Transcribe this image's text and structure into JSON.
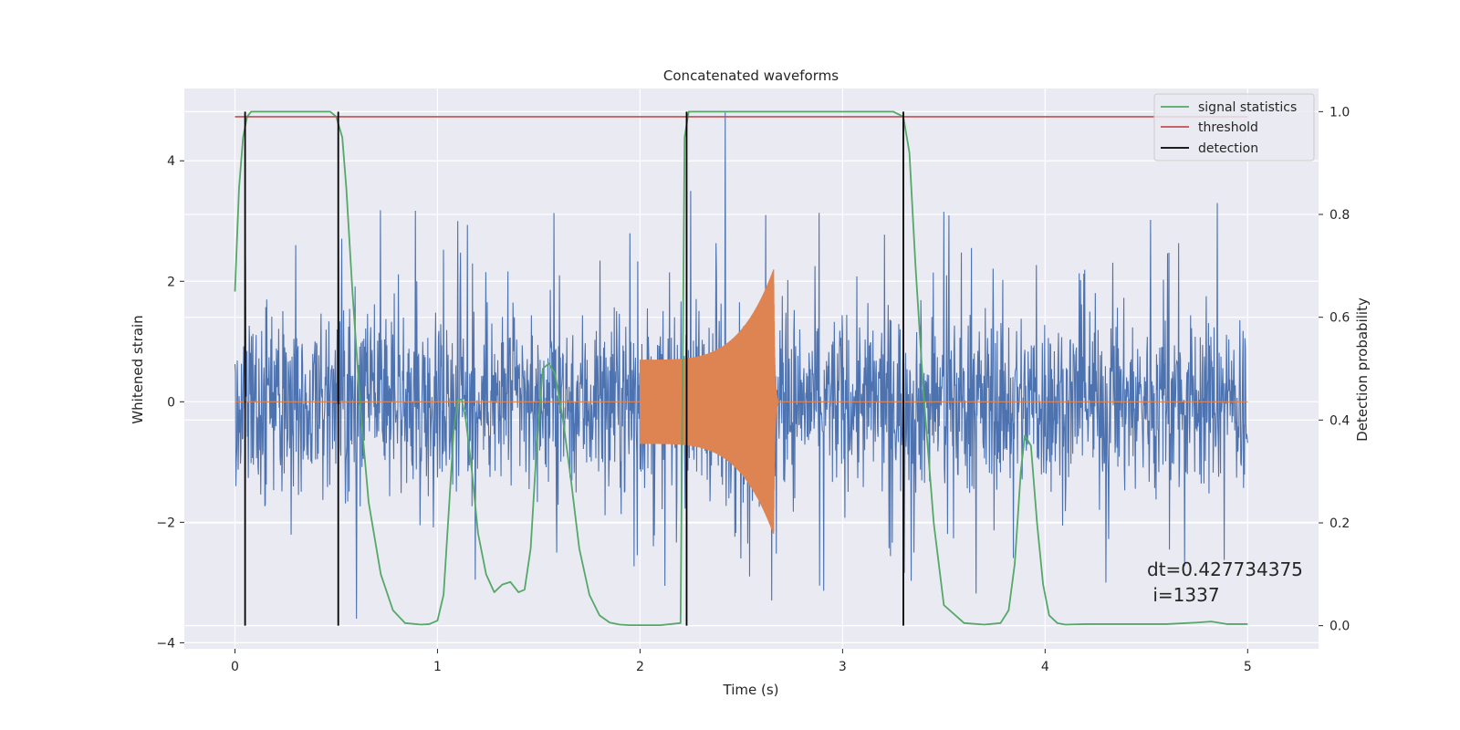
{
  "chart_data": {
    "type": "line",
    "title": "Concatenated waveforms",
    "xlabel": "Time (s)",
    "ylabel": "Whitened strain",
    "y2label": "Detection probability",
    "xlim": [
      -0.25,
      5.35
    ],
    "ylim": [
      -4.1,
      5.2
    ],
    "y2lim": [
      -0.045,
      1.045
    ],
    "xticks": [
      0,
      1,
      2,
      3,
      4,
      5
    ],
    "xtick_labels": [
      "0",
      "1",
      "2",
      "3",
      "4",
      "5"
    ],
    "yticks": [
      -4,
      -2,
      0,
      2,
      4
    ],
    "ytick_labels": [
      "−4",
      "−2",
      "0",
      "2",
      "4"
    ],
    "y2ticks": [
      0.0,
      0.2,
      0.4,
      0.6,
      0.8,
      1.0
    ],
    "y2tick_labels": [
      "0.0",
      "0.2",
      "0.4",
      "0.6",
      "0.8",
      "1.0"
    ],
    "grid": true,
    "legend_position": "top-right",
    "colors": {
      "background": "#eaeaf2",
      "grid": "#ffffff",
      "strain": "#4c72b0",
      "injection": "#dd8452",
      "signal_statistics": "#55a868",
      "threshold": "#c44e52",
      "detection": "#000000"
    },
    "strain": {
      "t_range": [
        0,
        5
      ],
      "typical_amplitude": 1.0,
      "spikes": [
        {
          "t": 0.05,
          "y": 3.0
        },
        {
          "t": 0.3,
          "y": 2.6
        },
        {
          "t": 0.6,
          "y": -3.6
        },
        {
          "t": 1.1,
          "y": 3.0
        },
        {
          "t": 2.25,
          "y": 3.5
        },
        {
          "t": 2.42,
          "y": 4.8
        },
        {
          "t": 2.62,
          "y": 3.1
        },
        {
          "t": 2.65,
          "y": -3.3
        },
        {
          "t": 4.85,
          "y": 3.3
        },
        {
          "t": 4.3,
          "y": -3.0
        }
      ]
    },
    "injection": {
      "t_start": 2.0,
      "t_merge": 2.66,
      "t_end": 2.68,
      "start_amplitude": 0.7,
      "peak_amplitude": 2.2
    },
    "series": [
      {
        "name": "signal statistics",
        "axis": "right",
        "x": [
          0.0,
          0.02,
          0.04,
          0.06,
          0.08,
          0.12,
          0.2,
          0.3,
          0.4,
          0.47,
          0.5,
          0.53,
          0.55,
          0.58,
          0.62,
          0.66,
          0.72,
          0.78,
          0.84,
          0.92,
          0.96,
          1.0,
          1.03,
          1.06,
          1.08,
          1.1,
          1.12,
          1.14,
          1.17,
          1.2,
          1.24,
          1.28,
          1.32,
          1.36,
          1.4,
          1.43,
          1.46,
          1.49,
          1.52,
          1.55,
          1.58,
          1.62,
          1.66,
          1.7,
          1.75,
          1.8,
          1.85,
          1.9,
          1.95,
          2.0,
          2.1,
          2.2,
          2.22,
          2.24,
          2.26,
          2.3,
          2.5,
          3.0,
          3.25,
          3.3,
          3.33,
          3.36,
          3.4,
          3.45,
          3.5,
          3.6,
          3.7,
          3.78,
          3.82,
          3.85,
          3.88,
          3.9,
          3.93,
          3.96,
          3.99,
          4.02,
          4.06,
          4.1,
          4.2,
          4.4,
          4.6,
          4.75,
          4.82,
          4.9,
          5.0
        ],
        "values": [
          0.65,
          0.85,
          0.95,
          0.99,
          1.0,
          1.0,
          1.0,
          1.0,
          1.0,
          1.0,
          0.99,
          0.95,
          0.85,
          0.65,
          0.42,
          0.24,
          0.1,
          0.03,
          0.005,
          0.002,
          0.003,
          0.01,
          0.06,
          0.25,
          0.38,
          0.44,
          0.44,
          0.4,
          0.3,
          0.18,
          0.1,
          0.065,
          0.08,
          0.085,
          0.065,
          0.07,
          0.15,
          0.35,
          0.5,
          0.51,
          0.49,
          0.4,
          0.28,
          0.15,
          0.06,
          0.02,
          0.006,
          0.002,
          0.001,
          0.001,
          0.001,
          0.005,
          0.95,
          1.0,
          1.0,
          1.0,
          1.0,
          1.0,
          1.0,
          0.99,
          0.92,
          0.7,
          0.45,
          0.2,
          0.04,
          0.005,
          0.002,
          0.005,
          0.03,
          0.12,
          0.3,
          0.37,
          0.35,
          0.2,
          0.08,
          0.02,
          0.005,
          0.002,
          0.003,
          0.003,
          0.003,
          0.006,
          0.008,
          0.003,
          0.003
        ]
      },
      {
        "name": "threshold",
        "axis": "right",
        "x": [
          0.0,
          5.0
        ],
        "values": [
          0.99,
          0.99
        ]
      },
      {
        "name": "detection",
        "axis": "right",
        "type": "vertical-lines",
        "x": [
          0.05,
          0.51,
          2.23,
          3.3
        ],
        "y_range": [
          0.0,
          1.0
        ]
      }
    ],
    "annotation": {
      "line1": "dt=0.427734375",
      "line2": " i=1337"
    }
  }
}
